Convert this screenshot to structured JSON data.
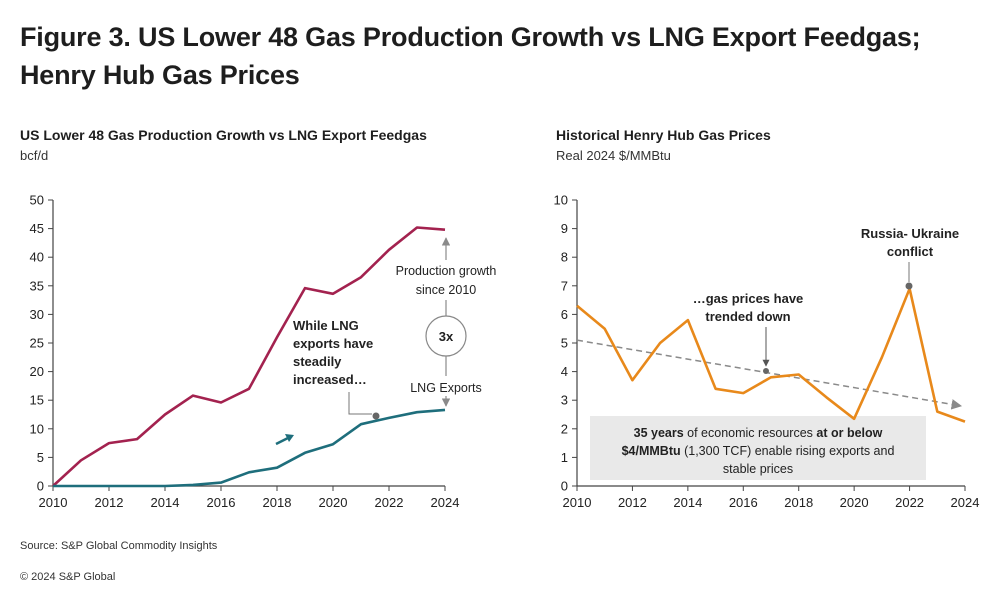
{
  "figure": {
    "title_line1": "Figure 3. US Lower 48 Gas Production Growth vs LNG Export Feedgas;",
    "title_line2": "Henry Hub Gas Prices"
  },
  "left_panel": {
    "title": "US Lower 48 Gas Production Growth vs LNG Export Feedgas",
    "unit": "bcf/d",
    "annotations": {
      "lng_line1": "While LNG",
      "lng_line2": "exports have",
      "lng_line3": "steadily",
      "lng_line4": "increased…",
      "prod_line1": "Production growth",
      "prod_line2": "since 2010",
      "multiplier": "3x",
      "lng_exports": "LNG Exports"
    }
  },
  "right_panel": {
    "title": "Historical Henry Hub Gas Prices",
    "unit": "Real 2024 $/MMBtu",
    "annotations": {
      "russia_line1": "Russia- Ukraine",
      "russia_line2": "conflict",
      "trend_line1": "…gas prices have",
      "trend_line2": "trended down",
      "box_line1_bold": "35 years",
      "box_line1_mid": " of economic resources ",
      "box_line1_bold2": "at or below",
      "box_line2_bold": "$4/MMBtu",
      "box_line2_rest": " (1,300 TCF) enable rising exports and",
      "box_line3": "stable prices"
    }
  },
  "source": "Source: S&P Global Commodity Insights",
  "copyright": "© 2024 S&P Global",
  "colors": {
    "production": "#a3224f",
    "lng": "#1e6e7c",
    "price": "#e8891b",
    "trend": "#8a8a8a",
    "axis": "#444444"
  },
  "chart_data": [
    {
      "type": "line",
      "title": "US Lower 48 Gas Production Growth vs LNG Export Feedgas",
      "ylabel": "bcf/d",
      "xlim": [
        2010,
        2024
      ],
      "ylim": [
        0,
        50
      ],
      "x_ticks": [
        2010,
        2012,
        2014,
        2016,
        2018,
        2020,
        2022,
        2024
      ],
      "y_ticks": [
        0,
        5,
        10,
        15,
        20,
        25,
        30,
        35,
        40,
        45,
        50
      ],
      "x": [
        2010,
        2011,
        2012,
        2013,
        2014,
        2015,
        2016,
        2017,
        2018,
        2019,
        2020,
        2021,
        2022,
        2023,
        2024
      ],
      "series": [
        {
          "name": "Production growth since 2010",
          "color": "#a3224f",
          "values": [
            0,
            4.5,
            7.5,
            8.2,
            12.5,
            15.8,
            14.6,
            17,
            26,
            34.6,
            33.6,
            36.5,
            41.3,
            45.2,
            44.8
          ]
        },
        {
          "name": "LNG Exports",
          "color": "#1e6e7c",
          "values": [
            0,
            0,
            0,
            0,
            0,
            0.2,
            0.6,
            2.4,
            3.2,
            5.8,
            7.3,
            10.8,
            11.9,
            12.9,
            13.3
          ]
        }
      ],
      "grid": false,
      "legend": "none"
    },
    {
      "type": "line",
      "title": "Historical Henry Hub Gas Prices",
      "ylabel": "Real 2024 $/MMBtu",
      "xlim": [
        2010,
        2024
      ],
      "ylim": [
        0,
        10
      ],
      "x_ticks": [
        2010,
        2012,
        2014,
        2016,
        2018,
        2020,
        2022,
        2024
      ],
      "y_ticks": [
        0,
        1,
        2,
        3,
        4,
        5,
        6,
        7,
        8,
        9,
        10
      ],
      "x": [
        2010,
        2011,
        2012,
        2013,
        2014,
        2015,
        2016,
        2017,
        2018,
        2019,
        2020,
        2021,
        2022,
        2023,
        2024
      ],
      "series": [
        {
          "color": "#e8891b",
          "values": [
            6.3,
            5.5,
            3.7,
            5.0,
            5.8,
            3.4,
            3.25,
            3.8,
            3.9,
            3.1,
            2.35,
            4.5,
            6.9,
            2.6,
            2.25
          ]
        }
      ],
      "trend_line": {
        "x": [
          2010,
          2024
        ],
        "values": [
          5.1,
          2.8
        ]
      },
      "grid": false,
      "legend": "none"
    }
  ]
}
